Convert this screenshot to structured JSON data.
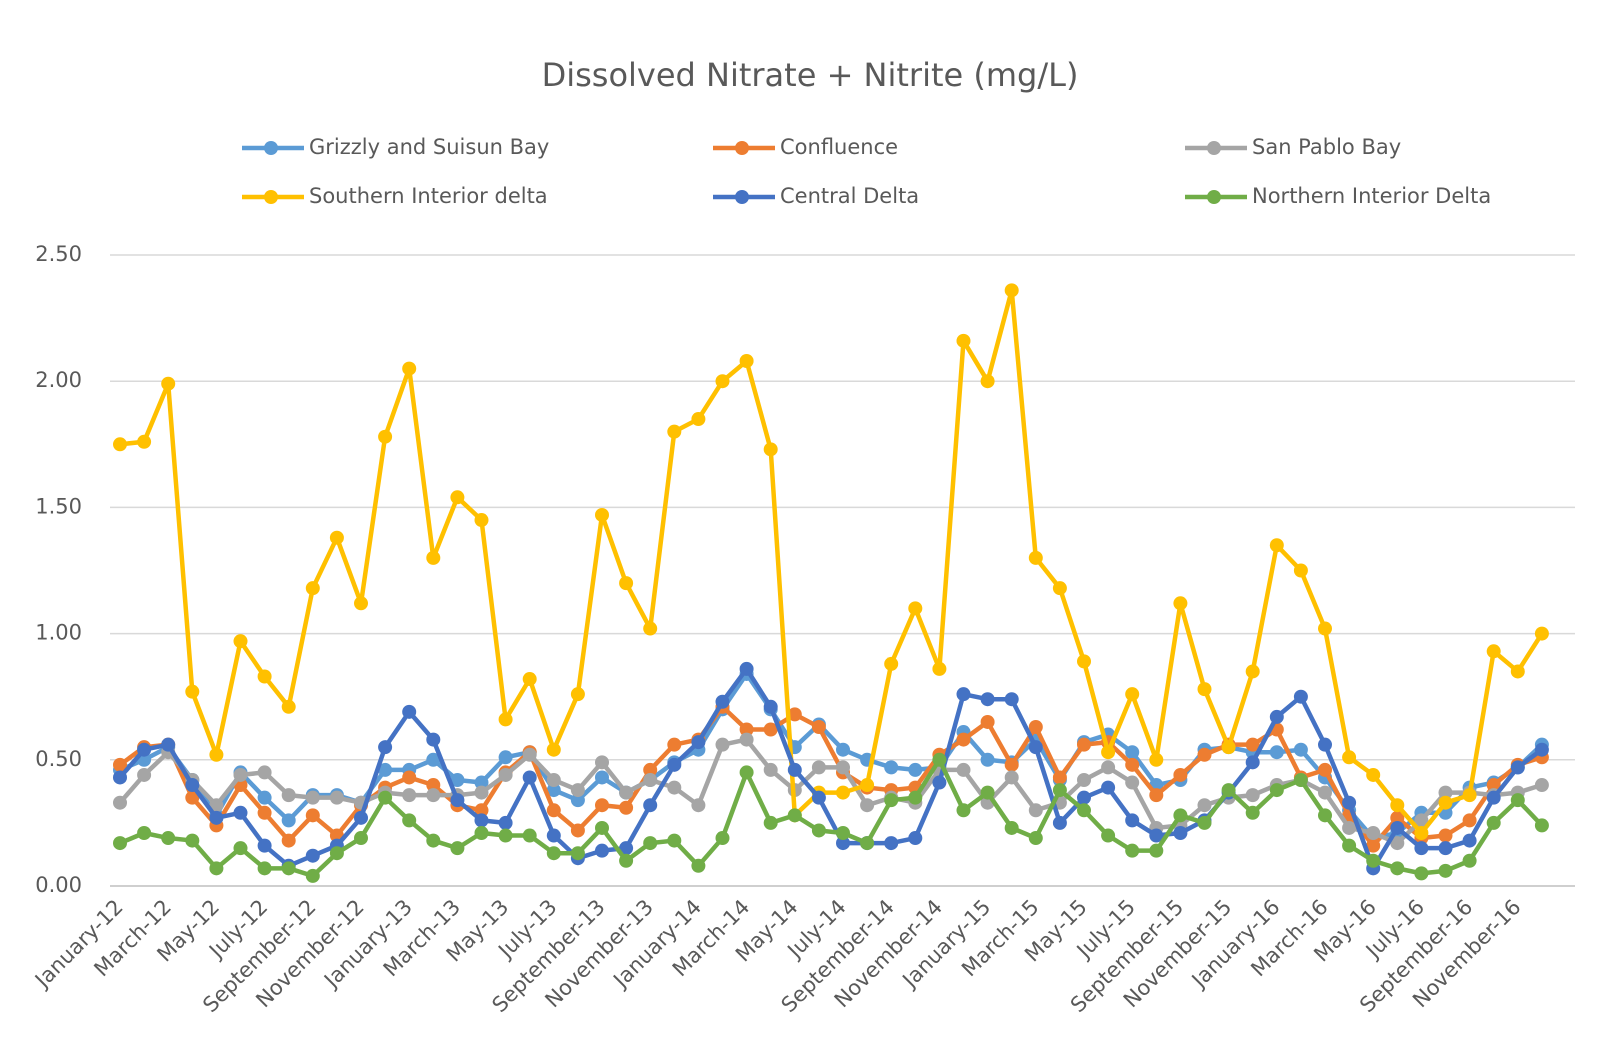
{
  "chart_data": {
    "type": "line",
    "title": "Dissolved Nitrate + Nitrite (mg/L)",
    "categories": [
      "January-12",
      null,
      "March-12",
      null,
      "May-12",
      null,
      "July-12",
      null,
      "September-12",
      null,
      "November-12",
      null,
      "January-13",
      null,
      "March-13",
      null,
      "May-13",
      null,
      "July-13",
      null,
      "September-13",
      null,
      "November-13",
      null,
      "January-14",
      null,
      "March-14",
      null,
      "May-14",
      null,
      "July-14",
      null,
      "September-14",
      null,
      "November-14",
      null,
      "January-15",
      null,
      "March-15",
      null,
      "May-15",
      null,
      "July-15",
      null,
      "September-15",
      null,
      "November-15",
      null,
      "January-16",
      null,
      "March-16",
      null,
      "May-16",
      null,
      "July-16",
      null,
      "September-16",
      null,
      "November-16",
      null
    ],
    "ylim": [
      0,
      2.5
    ],
    "yticks": [
      {
        "value": 0,
        "label": "0.00"
      },
      {
        "value": 0.5,
        "label": "0.50"
      },
      {
        "value": 1,
        "label": "1.00"
      },
      {
        "value": 1.5,
        "label": "1.50"
      },
      {
        "value": 2,
        "label": "2.00"
      },
      {
        "value": 2.5,
        "label": "2.50"
      }
    ],
    "grid": true,
    "legend": "top",
    "series": [
      {
        "name": "Grizzly and Suisun Bay",
        "color": "#5b9bd5",
        "values": [
          0.46,
          0.5,
          0.55,
          0.42,
          0.28,
          0.45,
          0.35,
          0.26,
          0.36,
          0.36,
          0.33,
          0.46,
          0.46,
          0.5,
          0.42,
          0.41,
          0.51,
          0.53,
          0.38,
          0.34,
          0.43,
          0.37,
          0.42,
          0.49,
          0.54,
          0.7,
          0.84,
          0.7,
          0.55,
          0.64,
          0.54,
          0.5,
          0.47,
          0.46,
          0.47,
          0.61,
          0.5,
          0.49,
          0.58,
          0.42,
          0.57,
          0.6,
          0.53,
          0.4,
          0.42,
          0.54,
          0.55,
          0.53,
          0.53,
          0.54,
          0.43,
          0.3,
          0.19,
          0.21,
          0.29,
          0.29,
          0.39,
          0.41,
          0.47,
          0.56
        ]
      },
      {
        "name": "Confluence",
        "color": "#ed7d31",
        "values": [
          0.48,
          0.55,
          0.56,
          0.35,
          0.24,
          0.4,
          0.29,
          0.18,
          0.28,
          0.2,
          0.32,
          0.39,
          0.43,
          0.4,
          0.32,
          0.3,
          0.45,
          0.53,
          0.3,
          0.22,
          0.32,
          0.31,
          0.46,
          0.56,
          0.58,
          0.71,
          0.62,
          0.62,
          0.68,
          0.63,
          0.45,
          0.39,
          0.38,
          0.39,
          0.52,
          0.58,
          0.65,
          0.48,
          0.63,
          0.43,
          0.56,
          0.57,
          0.48,
          0.36,
          0.44,
          0.52,
          0.56,
          0.56,
          0.62,
          0.43,
          0.46,
          0.28,
          0.16,
          0.27,
          0.19,
          0.2,
          0.26,
          0.4,
          0.48,
          0.51
        ]
      },
      {
        "name": "San Pablo Bay",
        "color": "#a5a5a5",
        "values": [
          0.33,
          0.44,
          0.53,
          0.42,
          0.32,
          0.44,
          0.45,
          0.36,
          0.35,
          0.35,
          0.33,
          0.37,
          0.36,
          0.36,
          0.36,
          0.37,
          0.44,
          0.52,
          0.42,
          0.38,
          0.49,
          0.37,
          0.42,
          0.39,
          0.32,
          0.56,
          0.58,
          0.46,
          0.38,
          0.47,
          0.47,
          0.32,
          0.35,
          0.33,
          0.46,
          0.46,
          0.33,
          0.43,
          0.3,
          0.33,
          0.42,
          0.47,
          0.41,
          0.23,
          0.24,
          0.32,
          0.35,
          0.36,
          0.4,
          0.42,
          0.37,
          0.23,
          0.21,
          0.17,
          0.26,
          0.37,
          0.37,
          0.36,
          0.37,
          0.4
        ]
      },
      {
        "name": "Southern Interior delta",
        "color": "#ffc000",
        "values": [
          1.75,
          1.76,
          1.99,
          0.77,
          0.52,
          0.97,
          0.83,
          0.71,
          1.18,
          1.38,
          1.12,
          1.78,
          2.05,
          1.3,
          1.54,
          1.45,
          0.66,
          0.82,
          0.54,
          0.76,
          1.47,
          1.2,
          1.02,
          1.8,
          1.85,
          2.0,
          2.08,
          1.73,
          0.28,
          0.37,
          0.37,
          0.4,
          0.88,
          1.1,
          0.86,
          2.16,
          2.0,
          2.36,
          1.3,
          1.18,
          0.89,
          0.53,
          0.76,
          0.5,
          1.12,
          0.78,
          0.55,
          0.85,
          1.35,
          1.25,
          1.02,
          0.51,
          0.44,
          0.32,
          0.21,
          0.33,
          0.36,
          0.93,
          0.85,
          1.0
        ]
      },
      {
        "name": "Central Delta",
        "color": "#4472c4",
        "values": [
          0.43,
          0.54,
          0.56,
          0.4,
          0.27,
          0.29,
          0.16,
          0.08,
          0.12,
          0.16,
          0.27,
          0.55,
          0.69,
          0.58,
          0.34,
          0.26,
          0.25,
          0.43,
          0.2,
          0.11,
          0.14,
          0.15,
          0.32,
          0.48,
          0.57,
          0.73,
          0.86,
          0.71,
          0.46,
          0.35,
          0.17,
          0.17,
          0.17,
          0.19,
          0.41,
          0.76,
          0.74,
          0.74,
          0.55,
          0.25,
          0.35,
          0.39,
          0.26,
          0.2,
          0.21,
          0.26,
          0.37,
          0.49,
          0.67,
          0.75,
          0.56,
          0.33,
          0.07,
          0.23,
          0.15,
          0.15,
          0.18,
          0.35,
          0.47,
          0.54
        ]
      },
      {
        "name": "Northern Interior Delta",
        "color": "#70ad47",
        "values": [
          0.17,
          0.21,
          0.19,
          0.18,
          0.07,
          0.15,
          0.07,
          0.07,
          0.04,
          0.13,
          0.19,
          0.35,
          0.26,
          0.18,
          0.15,
          0.21,
          0.2,
          0.2,
          0.13,
          0.13,
          0.23,
          0.1,
          0.17,
          0.18,
          0.08,
          0.19,
          0.45,
          0.25,
          0.28,
          0.22,
          0.21,
          0.17,
          0.34,
          0.35,
          0.5,
          0.3,
          0.37,
          0.23,
          0.19,
          0.38,
          0.3,
          0.2,
          0.14,
          0.14,
          0.28,
          0.25,
          0.38,
          0.29,
          0.38,
          0.42,
          0.28,
          0.16,
          0.1,
          0.07,
          0.05,
          0.06,
          0.1,
          0.25,
          0.34,
          0.24
        ]
      }
    ]
  }
}
